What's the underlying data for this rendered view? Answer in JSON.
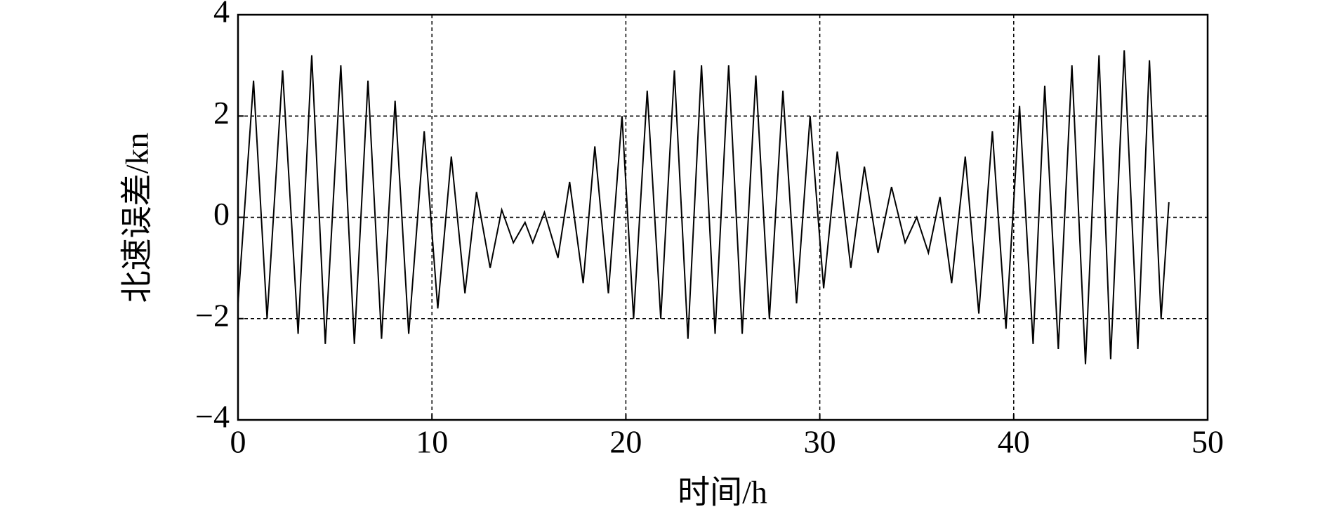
{
  "chart_data": {
    "type": "line",
    "xlabel": "时间/h",
    "ylabel": "北速误差/kn",
    "series": [
      {
        "color": "#000000",
        "x": [
          0,
          0.8,
          1.5,
          2.3,
          3.1,
          3.8,
          4.5,
          5.3,
          6.0,
          6.7,
          7.4,
          8.1,
          8.8,
          9.6,
          10.3,
          11.0,
          11.7,
          12.3,
          13.0,
          13.6,
          14.2,
          14.8,
          15.2,
          15.8,
          16.5,
          17.1,
          17.8,
          18.4,
          19.1,
          19.8,
          20.4,
          21.1,
          21.8,
          22.5,
          23.2,
          23.9,
          24.6,
          25.3,
          26.0,
          26.7,
          27.4,
          28.1,
          28.8,
          29.5,
          30.2,
          30.9,
          31.6,
          32.3,
          33.0,
          33.7,
          34.4,
          35.0,
          35.6,
          36.2,
          36.8,
          37.5,
          38.2,
          38.9,
          39.6,
          40.3,
          41.0,
          41.6,
          42.3,
          43.0,
          43.7,
          44.4,
          45.0,
          45.7,
          46.4,
          47.0,
          47.6,
          48.0
        ],
        "values": [
          -1.7,
          2.7,
          -2.0,
          2.9,
          -2.3,
          3.2,
          -2.5,
          3.0,
          -2.5,
          2.7,
          -2.4,
          2.3,
          -2.3,
          1.7,
          -1.8,
          1.2,
          -1.5,
          0.5,
          -1.0,
          0.15,
          -0.5,
          -0.1,
          -0.5,
          0.1,
          -0.8,
          0.7,
          -1.3,
          1.4,
          -1.5,
          2.0,
          -2.0,
          2.5,
          -2.0,
          2.9,
          -2.4,
          3.0,
          -2.3,
          3.0,
          -2.3,
          2.8,
          -2.0,
          2.5,
          -1.7,
          2.0,
          -1.4,
          1.3,
          -1.0,
          1.0,
          -0.7,
          0.6,
          -0.5,
          0.0,
          -0.7,
          0.4,
          -1.3,
          1.2,
          -1.9,
          1.7,
          -2.2,
          2.2,
          -2.5,
          2.6,
          -2.6,
          3.0,
          -2.9,
          3.2,
          -2.8,
          3.3,
          -2.6,
          3.1,
          -2.0,
          0.3
        ]
      }
    ],
    "xlim": [
      0,
      50
    ],
    "xticks": [
      0,
      10,
      20,
      30,
      40,
      50
    ],
    "ylim": [
      -4,
      4
    ],
    "yticks": [
      {
        "value": -4,
        "label": "−4"
      },
      {
        "value": -2,
        "label": "−2"
      },
      0,
      2,
      4
    ],
    "grid": true
  }
}
